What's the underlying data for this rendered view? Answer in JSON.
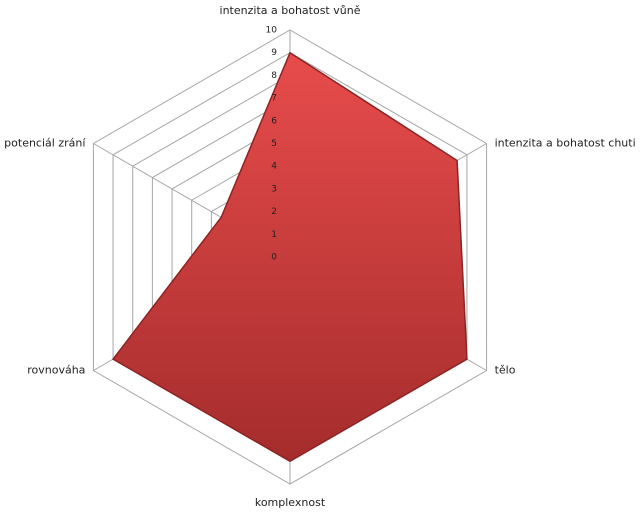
{
  "chart_data": {
    "type": "radar",
    "categories": [
      "intenzita a bohatost vůně",
      "intenzita a bohatost chuti",
      "tělo",
      "komplexnost",
      "rovnováha",
      "potenciál zrání"
    ],
    "values": [
      9,
      8.5,
      9,
      9,
      9,
      3.5
    ],
    "color": "#c93c3c",
    "ylim": [
      0,
      10
    ],
    "yticks": [
      0,
      1,
      2,
      3,
      4,
      5,
      6,
      7,
      8,
      9,
      10
    ],
    "grid": true
  }
}
